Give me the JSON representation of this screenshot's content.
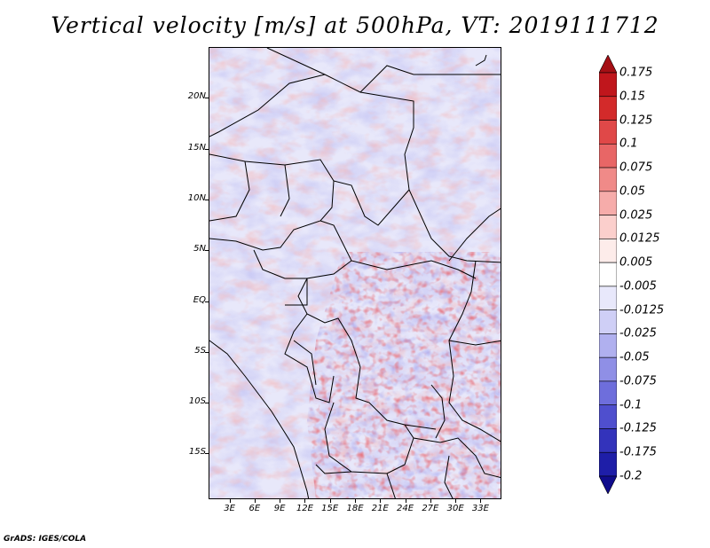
{
  "title": "Vertical velocity [m/s] at 500hPa, VT: 2019111712",
  "credit": "GrADS: IGES/COLA",
  "lat_labels": [
    "20N",
    "15N",
    "10N",
    "5N",
    "EQ",
    "5S",
    "10S",
    "15S"
  ],
  "lat_values": [
    20,
    15,
    10,
    5,
    0,
    -5,
    -10,
    -15
  ],
  "lon_labels": [
    "3E",
    "6E",
    "9E",
    "12E",
    "15E",
    "18E",
    "21E",
    "24E",
    "27E",
    "30E",
    "33E"
  ],
  "lon_values": [
    3,
    6,
    9,
    12,
    15,
    18,
    21,
    24,
    27,
    30,
    33
  ],
  "map_extent": {
    "lon_min": 0.5,
    "lon_max": 35.5,
    "lat_min": -19.5,
    "lat_max": 25
  },
  "colorbar": {
    "levels": [
      "0.175",
      "0.15",
      "0.125",
      "0.1",
      "0.075",
      "0.05",
      "0.025",
      "0.0125",
      "0.005",
      "-0.005",
      "-0.0125",
      "-0.025",
      "-0.05",
      "-0.075",
      "-0.1",
      "-0.125",
      "-0.175",
      "-0.2"
    ],
    "colors": [
      "#a50f15",
      "#c0161c",
      "#d32a2a",
      "#e04848",
      "#e86666",
      "#f08a88",
      "#f6acaa",
      "#fbcfcc",
      "#fdecea",
      "#ffffff",
      "#e8e8fb",
      "#cfcff6",
      "#b0b0ef",
      "#8f8fe6",
      "#6e6edc",
      "#4f4fce",
      "#3333bb",
      "#1e1ea8",
      "#100c8c"
    ]
  },
  "field_colors": {
    "background": "#dcdcf7",
    "ascent": "#e86666",
    "descent": "#8f8fe6"
  }
}
